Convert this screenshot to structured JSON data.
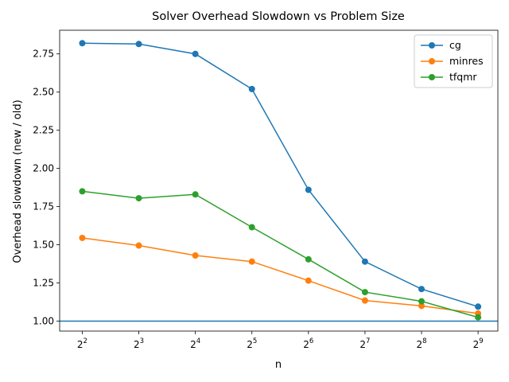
{
  "chart_data": {
    "type": "line",
    "title": "Solver Overhead Slowdown vs Problem Size",
    "xlabel": "n",
    "ylabel": "Overhead slowdown (new / old)",
    "x_base": "2",
    "x_exponents": [
      "2",
      "3",
      "4",
      "5",
      "6",
      "7",
      "8",
      "9"
    ],
    "x": [
      2,
      3,
      4,
      5,
      6,
      7,
      8,
      9
    ],
    "xlim": [
      1.6,
      9.35
    ],
    "ylim": [
      0.935,
      2.905
    ],
    "y_ticks": [
      1.0,
      1.25,
      1.5,
      1.75,
      2.0,
      2.25,
      2.5,
      2.75
    ],
    "y_tick_labels": [
      "1.00",
      "1.25",
      "1.50",
      "1.75",
      "2.00",
      "2.25",
      "2.50",
      "2.75"
    ],
    "reference_line": {
      "y": 1.0,
      "color": "#1f77b4"
    },
    "legend_position": "top-right",
    "series": [
      {
        "name": "cg",
        "color": "#1f77b4",
        "values": [
          2.82,
          2.815,
          2.75,
          2.52,
          1.86,
          1.39,
          1.21,
          1.095
        ]
      },
      {
        "name": "minres",
        "color": "#ff7f0e",
        "values": [
          1.545,
          1.495,
          1.43,
          1.39,
          1.265,
          1.135,
          1.1,
          1.05
        ]
      },
      {
        "name": "tfqmr",
        "color": "#2ca02c",
        "values": [
          1.85,
          1.805,
          1.83,
          1.615,
          1.405,
          1.19,
          1.13,
          1.025
        ]
      }
    ]
  }
}
